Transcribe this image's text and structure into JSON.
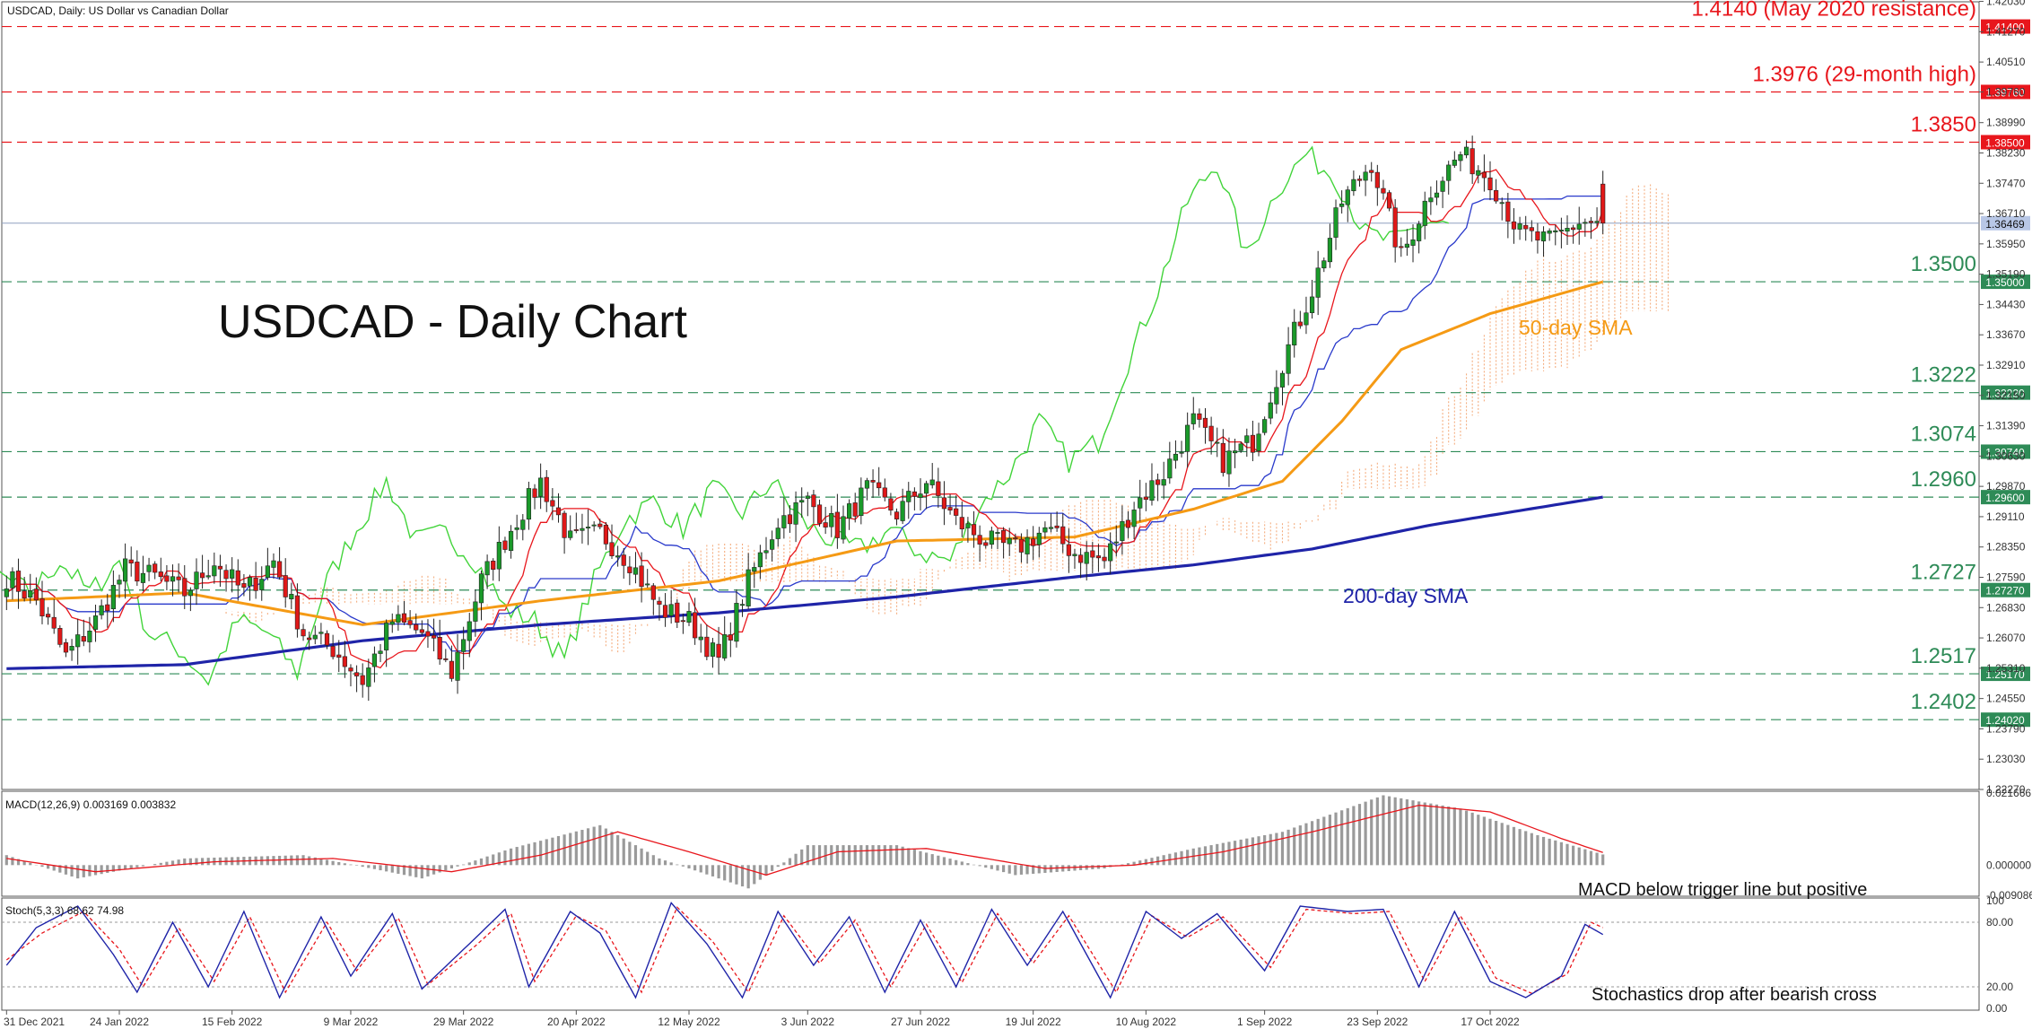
{
  "header": {
    "symbol_caption": "USDCAD, Daily:  US Dollar vs Canadian Dollar",
    "title": "USDCAD - Daily Chart"
  },
  "colors": {
    "resistance": "#e8161c",
    "support": "#2e8b57",
    "sma50": "#f59a14",
    "sma200": "#1f24a8",
    "candle_up": "#1a9a2a",
    "candle_down": "#e01818",
    "tenkan": "#e8161c",
    "kijun": "#2a3acb",
    "chikou": "#42d43a",
    "cloud": "#f3a06a",
    "histogram": "#9a9a9a",
    "macd_signal": "#e8161c",
    "stoch_main": "#1f24a8",
    "stoch_signal": "#e8161c"
  },
  "chart_data": {
    "type": "candlestick",
    "title": "USDCAD - Daily Chart",
    "symbol": "USDCAD, Daily:  US Dollar vs Canadian Dollar",
    "ylim": [
      1.2227,
      1.4202
    ],
    "price_axis_ticks": [
      "1.42030",
      "1.41270",
      "1.40510",
      "1.39760",
      "1.38990",
      "1.38230",
      "1.37470",
      "1.36710",
      "1.35950",
      "1.35190",
      "1.34430",
      "1.33670",
      "1.32910",
      "1.32150",
      "1.31390",
      "1.30630",
      "1.29870",
      "1.29110",
      "1.28350",
      "1.27590",
      "1.26830",
      "1.26070",
      "1.25310",
      "1.24550",
      "1.23790",
      "1.23030",
      "1.22270"
    ],
    "date_labels": [
      "31 Dec 2021",
      "24 Jan 2022",
      "15 Feb 2022",
      "9 Mar 2022",
      "29 Mar 2022",
      "20 Apr 2022",
      "12 May 2022",
      "3 Jun 2022",
      "27 Jun 2022",
      "19 Jul 2022",
      "10 Aug 2022",
      "1 Sep 2022",
      "23 Sep 2022",
      "17 Oct 2022"
    ],
    "current_price": "1.36469",
    "levels": [
      {
        "value": 1.414,
        "box": "1.41400",
        "label": "1.4140 (May 2020 resistance)",
        "kind": "resistance"
      },
      {
        "value": 1.3976,
        "box": "1.39760",
        "label": "1.3976 (29-month high)",
        "kind": "resistance"
      },
      {
        "value": 1.385,
        "box": "1.38500",
        "label": "1.3850",
        "kind": "resistance"
      },
      {
        "value": 1.35,
        "box": "1.35000",
        "label": "1.3500",
        "kind": "support"
      },
      {
        "value": 1.3222,
        "box": "1.32220",
        "label": "1.3222",
        "kind": "support"
      },
      {
        "value": 1.3074,
        "box": "1.30740",
        "label": "1.3074",
        "kind": "support"
      },
      {
        "value": 1.296,
        "box": "1.29600",
        "label": "1.2960",
        "kind": "support"
      },
      {
        "value": 1.2727,
        "box": "1.27270",
        "label": "1.2727",
        "kind": "support"
      },
      {
        "value": 1.2517,
        "box": "1.25170",
        "label": "1.2517",
        "kind": "support"
      },
      {
        "value": 1.2402,
        "box": "1.24020",
        "label": "1.2402",
        "kind": "support"
      }
    ],
    "annotations": {
      "sma50": "50-day SMA",
      "sma200": "200-day SMA"
    },
    "close_anchors": [
      [
        0,
        1.276
      ],
      [
        5,
        1.27
      ],
      [
        10,
        1.256
      ],
      [
        15,
        1.265
      ],
      [
        20,
        1.278
      ],
      [
        25,
        1.276
      ],
      [
        30,
        1.272
      ],
      [
        35,
        1.28
      ],
      [
        40,
        1.272
      ],
      [
        45,
        1.28
      ],
      [
        50,
        1.262
      ],
      [
        55,
        1.258
      ],
      [
        60,
        1.25
      ],
      [
        65,
        1.265
      ],
      [
        70,
        1.262
      ],
      [
        75,
        1.252
      ],
      [
        80,
        1.275
      ],
      [
        85,
        1.288
      ],
      [
        90,
        1.3
      ],
      [
        95,
        1.285
      ],
      [
        100,
        1.287
      ],
      [
        105,
        1.28
      ],
      [
        110,
        1.268
      ],
      [
        115,
        1.265
      ],
      [
        120,
        1.255
      ],
      [
        125,
        1.275
      ],
      [
        130,
        1.29
      ],
      [
        135,
        1.295
      ],
      [
        140,
        1.288
      ],
      [
        145,
        1.298
      ],
      [
        150,
        1.292
      ],
      [
        155,
        1.3
      ],
      [
        160,
        1.29
      ],
      [
        165,
        1.285
      ],
      [
        170,
        1.283
      ],
      [
        175,
        1.288
      ],
      [
        180,
        1.282
      ],
      [
        185,
        1.28
      ],
      [
        190,
        1.294
      ],
      [
        195,
        1.302
      ],
      [
        200,
        1.315
      ],
      [
        205,
        1.305
      ],
      [
        210,
        1.31
      ],
      [
        215,
        1.33
      ],
      [
        220,
        1.348
      ],
      [
        225,
        1.37
      ],
      [
        230,
        1.38
      ],
      [
        235,
        1.356
      ],
      [
        240,
        1.373
      ],
      [
        245,
        1.382
      ],
      [
        250,
        1.376
      ],
      [
        255,
        1.362
      ],
      [
        260,
        1.36
      ],
      [
        265,
        1.365
      ],
      [
        269,
        1.3647
      ]
    ],
    "sma50_anchors": [
      [
        0,
        1.27
      ],
      [
        30,
        1.272
      ],
      [
        60,
        1.264
      ],
      [
        90,
        1.27
      ],
      [
        120,
        1.275
      ],
      [
        150,
        1.285
      ],
      [
        180,
        1.286
      ],
      [
        200,
        1.293
      ],
      [
        215,
        1.3
      ],
      [
        225,
        1.315
      ],
      [
        235,
        1.333
      ],
      [
        250,
        1.342
      ],
      [
        269,
        1.35
      ]
    ],
    "sma200_anchors": [
      [
        0,
        1.253
      ],
      [
        30,
        1.254
      ],
      [
        60,
        1.26
      ],
      [
        90,
        1.264
      ],
      [
        120,
        1.267
      ],
      [
        150,
        1.271
      ],
      [
        180,
        1.276
      ],
      [
        200,
        1.279
      ],
      [
        220,
        1.283
      ],
      [
        240,
        1.289
      ],
      [
        269,
        1.296
      ]
    ],
    "macd": {
      "label": "MACD(12,26,9) 0.003169 0.003832",
      "axis_ticks": [
        "0.021666",
        "0.000000",
        "-0.009086"
      ],
      "ylim": [
        -0.009086,
        0.021666
      ],
      "hist_anchors": [
        [
          0,
          0.003
        ],
        [
          12,
          -0.004
        ],
        [
          30,
          0.002
        ],
        [
          50,
          0.003
        ],
        [
          70,
          -0.004
        ],
        [
          85,
          0.005
        ],
        [
          100,
          0.012
        ],
        [
          110,
          0.002
        ],
        [
          125,
          -0.007
        ],
        [
          135,
          0.006
        ],
        [
          150,
          0.006
        ],
        [
          170,
          -0.003
        ],
        [
          185,
          -0.001
        ],
        [
          200,
          0.005
        ],
        [
          215,
          0.01
        ],
        [
          232,
          0.021
        ],
        [
          245,
          0.017
        ],
        [
          258,
          0.009
        ],
        [
          269,
          0.0032
        ]
      ],
      "signal_anchors": [
        [
          0,
          0.002
        ],
        [
          15,
          -0.002
        ],
        [
          35,
          0.001
        ],
        [
          55,
          0.002
        ],
        [
          75,
          -0.002
        ],
        [
          90,
          0.003
        ],
        [
          103,
          0.01
        ],
        [
          115,
          0.004
        ],
        [
          128,
          -0.003
        ],
        [
          140,
          0.004
        ],
        [
          155,
          0.005
        ],
        [
          175,
          -0.001
        ],
        [
          190,
          0.0
        ],
        [
          205,
          0.004
        ],
        [
          220,
          0.01
        ],
        [
          238,
          0.018
        ],
        [
          250,
          0.016
        ],
        [
          262,
          0.008
        ],
        [
          269,
          0.0038
        ]
      ]
    },
    "stochastic": {
      "label": "Stoch(5,3,3) 68.62 74.98",
      "axis_ticks": [
        "100",
        "80.00",
        "20.00",
        "0.00"
      ],
      "ylim": [
        0,
        100
      ],
      "main_anchors": [
        [
          0,
          40
        ],
        [
          5,
          75
        ],
        [
          12,
          95
        ],
        [
          18,
          50
        ],
        [
          22,
          15
        ],
        [
          28,
          80
        ],
        [
          34,
          20
        ],
        [
          40,
          90
        ],
        [
          46,
          10
        ],
        [
          53,
          85
        ],
        [
          58,
          30
        ],
        [
          65,
          88
        ],
        [
          70,
          18
        ],
        [
          78,
          60
        ],
        [
          84,
          92
        ],
        [
          88,
          20
        ],
        [
          95,
          90
        ],
        [
          100,
          70
        ],
        [
          106,
          10
        ],
        [
          112,
          98
        ],
        [
          118,
          60
        ],
        [
          124,
          10
        ],
        [
          130,
          90
        ],
        [
          136,
          40
        ],
        [
          142,
          85
        ],
        [
          148,
          15
        ],
        [
          154,
          82
        ],
        [
          160,
          20
        ],
        [
          166,
          92
        ],
        [
          172,
          40
        ],
        [
          178,
          90
        ],
        [
          186,
          10
        ],
        [
          192,
          90
        ],
        [
          198,
          65
        ],
        [
          204,
          88
        ],
        [
          212,
          35
        ],
        [
          218,
          95
        ],
        [
          226,
          90
        ],
        [
          232,
          92
        ],
        [
          238,
          20
        ],
        [
          244,
          90
        ],
        [
          250,
          25
        ],
        [
          256,
          10
        ],
        [
          262,
          30
        ],
        [
          266,
          78
        ],
        [
          269,
          68.62
        ]
      ],
      "signal_anchors": [
        [
          0,
          45
        ],
        [
          6,
          70
        ],
        [
          13,
          90
        ],
        [
          19,
          55
        ],
        [
          23,
          20
        ],
        [
          29,
          75
        ],
        [
          35,
          25
        ],
        [
          41,
          85
        ],
        [
          47,
          15
        ],
        [
          54,
          80
        ],
        [
          59,
          35
        ],
        [
          66,
          84
        ],
        [
          71,
          22
        ],
        [
          79,
          58
        ],
        [
          85,
          88
        ],
        [
          89,
          25
        ],
        [
          96,
          86
        ],
        [
          101,
          72
        ],
        [
          107,
          15
        ],
        [
          113,
          94
        ],
        [
          119,
          62
        ],
        [
          125,
          15
        ],
        [
          131,
          86
        ],
        [
          137,
          42
        ],
        [
          143,
          82
        ],
        [
          149,
          20
        ],
        [
          155,
          78
        ],
        [
          161,
          24
        ],
        [
          167,
          88
        ],
        [
          173,
          42
        ],
        [
          179,
          86
        ],
        [
          187,
          15
        ],
        [
          193,
          86
        ],
        [
          199,
          66
        ],
        [
          205,
          85
        ],
        [
          213,
          38
        ],
        [
          219,
          92
        ],
        [
          227,
          88
        ],
        [
          233,
          90
        ],
        [
          239,
          25
        ],
        [
          245,
          86
        ],
        [
          251,
          28
        ],
        [
          257,
          14
        ],
        [
          263,
          32
        ],
        [
          267,
          80
        ],
        [
          269,
          74.98
        ]
      ]
    },
    "notes": {
      "macd": "MACD below trigger line but positive",
      "stoch": "Stochastics drop after bearish cross"
    }
  }
}
